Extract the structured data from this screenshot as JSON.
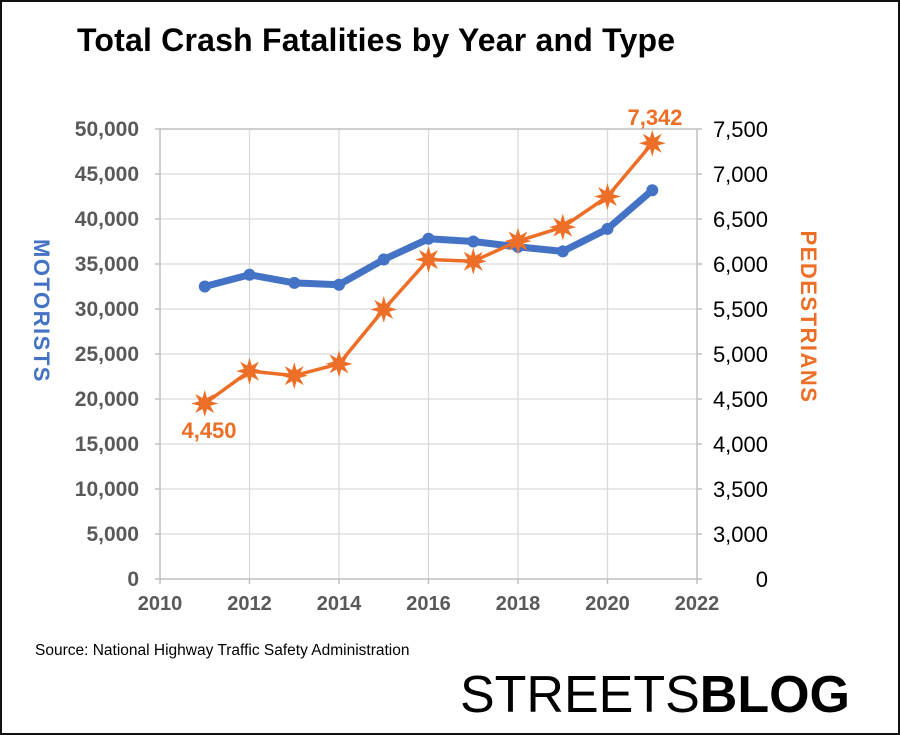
{
  "title": "Total Crash Fatalities by Year and Type",
  "chart_data": {
    "type": "line",
    "title": "Total Crash Fatalities by Year and Type",
    "x": [
      2011,
      2012,
      2013,
      2014,
      2015,
      2016,
      2017,
      2018,
      2019,
      2020,
      2021
    ],
    "series": [
      {
        "name": "MOTORISTS",
        "axis": "left",
        "color": "#4472C4",
        "marker": "circle",
        "line_width": 7,
        "values": [
          32500,
          33800,
          32900,
          32700,
          35500,
          37800,
          37500,
          36900,
          36400,
          38900,
          43200
        ]
      },
      {
        "name": "PEDESTRIANS",
        "axis": "right",
        "color": "#ED6E26",
        "marker": "star8",
        "line_width": 3.5,
        "values": [
          4450,
          4810,
          4760,
          4890,
          5495,
          6050,
          6030,
          6255,
          6410,
          6750,
          7342
        ]
      }
    ],
    "x_axis": {
      "tick_labels": [
        "2010",
        "2012",
        "2014",
        "2016",
        "2018",
        "2020",
        "2022"
      ],
      "range": [
        2010,
        2022
      ],
      "grid": true
    },
    "left_axis": {
      "title": "MOTORISTS",
      "tick_labels": [
        "50,000",
        "45,000",
        "40,000",
        "35,000",
        "30,000",
        "25,000",
        "20,000",
        "15,000",
        "10,000",
        "5,000",
        "0"
      ],
      "range": [
        0,
        50000
      ]
    },
    "right_axis": {
      "title": "PEDESTRIANS",
      "tick_labels": [
        "7,500",
        "7,000",
        "6,500",
        "6,000",
        "5,500",
        "5,000",
        "4,500",
        "4,000",
        "3,500",
        "3,000",
        "0"
      ],
      "plot_range": [
        2500,
        7500
      ],
      "note": "bottom label reads 0 although scale is linear from 2,500"
    },
    "annotations": [
      {
        "series": "PEDESTRIANS",
        "x": 2011,
        "text": "4,450"
      },
      {
        "series": "PEDESTRIANS",
        "x": 2021,
        "text": "7,342"
      }
    ],
    "legend": "none",
    "grid": true
  },
  "footer": {
    "source": "Source: National Highway Traffic Safety Administration",
    "logo": {
      "part1": "STREETS",
      "part2": "BLOG"
    }
  },
  "colors": {
    "motorists": "#4472C4",
    "pedestrians": "#ED6E26",
    "grid": "#D9D9D9",
    "axis_border": "#BFBFBF",
    "tick_text": "#595959",
    "title_text": "#000000"
  }
}
